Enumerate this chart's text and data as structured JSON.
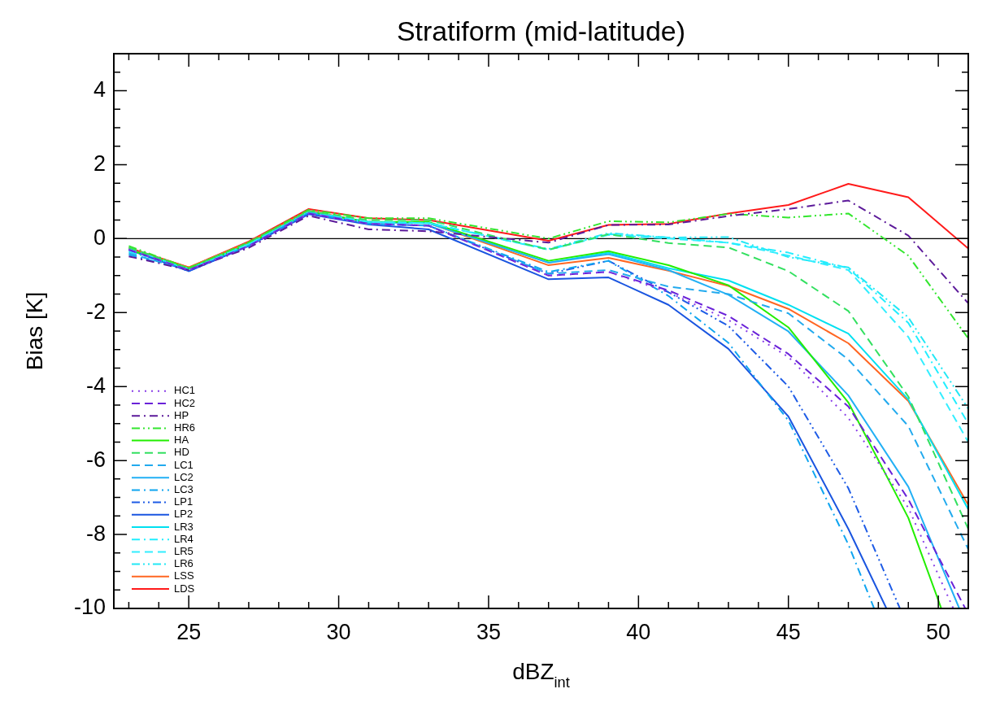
{
  "chart_data": {
    "type": "line",
    "title": "Stratiform (mid-latitude)",
    "xlabel": "dBZ$_{int}$",
    "ylabel": "Bias [K]",
    "x": [
      23,
      25,
      27,
      29,
      31,
      33,
      37,
      39,
      41,
      43,
      45,
      47,
      49,
      51
    ],
    "xlim": [
      22.5,
      51
    ],
    "ylim": [
      -10,
      5
    ],
    "xticks": [
      {
        "value": 23,
        "label": null
      },
      {
        "value": 24,
        "label": null
      },
      25,
      {
        "value": 26,
        "label": null
      },
      {
        "value": 27,
        "label": null
      },
      {
        "value": 28,
        "label": null
      },
      {
        "value": 29,
        "label": null
      },
      30,
      {
        "value": 31,
        "label": null
      },
      {
        "value": 32,
        "label": null
      },
      {
        "value": 33,
        "label": null
      },
      {
        "value": 34,
        "label": null
      },
      35,
      {
        "value": 36,
        "label": null
      },
      {
        "value": 37,
        "label": null
      },
      {
        "value": 38,
        "label": null
      },
      {
        "value": 39,
        "label": null
      },
      40,
      {
        "value": 41,
        "label": null
      },
      {
        "value": 42,
        "label": null
      },
      {
        "value": 43,
        "label": null
      },
      {
        "value": 44,
        "label": null
      },
      45,
      {
        "value": 46,
        "label": null
      },
      {
        "value": 47,
        "label": null
      },
      {
        "value": 48,
        "label": null
      },
      {
        "value": 49,
        "label": null
      },
      50,
      {
        "value": 51,
        "label": null
      }
    ],
    "yticks": [
      -10,
      {
        "value": -9.5,
        "label": null
      },
      {
        "value": -9,
        "label": null
      },
      {
        "value": -8.5,
        "label": null
      },
      -8,
      {
        "value": -7.5,
        "label": null
      },
      {
        "value": -7,
        "label": null
      },
      {
        "value": -6.5,
        "label": null
      },
      -6,
      {
        "value": -5.5,
        "label": null
      },
      {
        "value": -5,
        "label": null
      },
      {
        "value": -4.5,
        "label": null
      },
      -4,
      {
        "value": -3.5,
        "label": null
      },
      {
        "value": -3,
        "label": null
      },
      {
        "value": -2.5,
        "label": null
      },
      -2,
      {
        "value": -1.5,
        "label": null
      },
      {
        "value": -1,
        "label": null
      },
      {
        "value": -0.5,
        "label": null
      },
      0,
      {
        "value": 0.5,
        "label": null
      },
      {
        "value": 1,
        "label": null
      },
      {
        "value": 1.5,
        "label": null
      },
      2,
      {
        "value": 2.5,
        "label": null
      },
      {
        "value": 3,
        "label": null
      },
      {
        "value": 3.5,
        "label": null
      },
      4,
      {
        "value": 4.5,
        "label": null
      },
      {
        "value": 5,
        "label": null
      }
    ],
    "ref_lines": [
      {
        "axis": "y",
        "value": 0,
        "color": "#000000"
      }
    ],
    "legend": "bottom left",
    "marker": "none",
    "series": [
      {
        "name": "HC1",
        "color": "#8a3ee8",
        "line_style": "dotted",
        "x": [
          23,
          25,
          27,
          29,
          31,
          33,
          37,
          39,
          41,
          43,
          45,
          47,
          49,
          50.5
        ],
        "values": [
          -0.3,
          -0.85,
          -0.2,
          0.68,
          0.4,
          0.35,
          -1.0,
          -0.9,
          -1.45,
          -2.2,
          -3.2,
          -4.85,
          -7.28,
          -10
        ]
      },
      {
        "name": "HC2",
        "color": "#6a22d8",
        "line_style": "dashed",
        "x": [
          23,
          25,
          27,
          29,
          31,
          33,
          37,
          39,
          41,
          43,
          45,
          47,
          49,
          50.9
        ],
        "values": [
          -0.3,
          -0.85,
          -0.2,
          0.68,
          0.4,
          0.35,
          -1.0,
          -0.9,
          -1.4,
          -2.09,
          -3.12,
          -4.54,
          -7.05,
          -10
        ]
      },
      {
        "name": "HP",
        "color": "#5c1a9a",
        "line_style": "dashdot",
        "values": [
          -0.48,
          -0.85,
          -0.25,
          0.62,
          0.25,
          0.2,
          -0.11,
          0.37,
          0.38,
          0.61,
          0.8,
          1.03,
          0.08,
          -1.75
        ]
      },
      {
        "name": "HR6",
        "color": "#33e62e",
        "line_style": "dashdotdot",
        "values": [
          -0.2,
          -0.8,
          -0.1,
          0.78,
          0.55,
          0.55,
          0.0,
          0.47,
          0.44,
          0.67,
          0.57,
          0.68,
          -0.46,
          -2.7
        ]
      },
      {
        "name": "HA",
        "color": "#22ee00",
        "line_style": "solid",
        "x": [
          23,
          25,
          27,
          29,
          31,
          33,
          37,
          39,
          41,
          43,
          45,
          47,
          49,
          50.1
        ],
        "values": [
          -0.3,
          -0.8,
          -0.15,
          0.72,
          0.45,
          0.45,
          -0.6,
          -0.34,
          -0.72,
          -1.26,
          -2.4,
          -4.43,
          -7.55,
          -10
        ]
      },
      {
        "name": "HD",
        "color": "#33e060",
        "line_style": "dashed",
        "values": [
          -0.24,
          -0.8,
          -0.1,
          0.75,
          0.5,
          0.5,
          -0.3,
          0.12,
          -0.12,
          -0.24,
          -0.88,
          -1.96,
          -4.27,
          -7.85
        ]
      },
      {
        "name": "LC1",
        "color": "#22aaee",
        "line_style": "dashed",
        "values": [
          -0.4,
          -0.85,
          -0.2,
          0.7,
          0.4,
          0.35,
          -0.95,
          -0.85,
          -1.3,
          -1.5,
          -2.02,
          -3.27,
          -5.07,
          -8.4
        ]
      },
      {
        "name": "LC2",
        "color": "#22b0f5",
        "line_style": "solid",
        "x": [
          23,
          25,
          27,
          29,
          31,
          33,
          37,
          39,
          41,
          43,
          45,
          47,
          49,
          50.7
        ],
        "values": [
          -0.3,
          -0.82,
          -0.15,
          0.72,
          0.45,
          0.42,
          -0.65,
          -0.42,
          -0.85,
          -1.52,
          -2.51,
          -4.24,
          -6.71,
          -10
        ]
      },
      {
        "name": "LC3",
        "color": "#0fa5f0",
        "line_style": "dashdot",
        "x": [
          23,
          25,
          27,
          29,
          31,
          33,
          37,
          39,
          41,
          43,
          45,
          47,
          47.86
        ],
        "values": [
          -0.44,
          -0.85,
          -0.2,
          0.7,
          0.4,
          0.35,
          -0.9,
          -0.6,
          -1.55,
          -2.82,
          -4.92,
          -8.27,
          -10
        ]
      },
      {
        "name": "LP1",
        "color": "#1e5ce6",
        "line_style": "dashdotdot",
        "x": [
          23,
          25,
          27,
          29,
          31,
          33,
          37,
          39,
          41,
          43,
          45,
          47,
          48.72
        ],
        "values": [
          -0.3,
          -0.88,
          -0.2,
          0.68,
          0.4,
          0.35,
          -0.95,
          -0.6,
          -1.45,
          -2.36,
          -4.0,
          -6.75,
          -10
        ]
      },
      {
        "name": "LP2",
        "color": "#1a55e0",
        "line_style": "solid",
        "x": [
          23,
          25,
          27,
          29,
          31,
          33,
          37,
          39,
          41,
          43,
          45,
          47,
          48.27
        ],
        "values": [
          -0.3,
          -0.88,
          -0.2,
          0.66,
          0.38,
          0.25,
          -1.1,
          -1.05,
          -1.79,
          -2.98,
          -4.81,
          -7.85,
          -10
        ]
      },
      {
        "name": "LR3",
        "color": "#00e0f0",
        "line_style": "solid",
        "values": [
          -0.3,
          -0.82,
          -0.15,
          0.72,
          0.45,
          0.42,
          -0.65,
          -0.38,
          -0.8,
          -1.13,
          -1.79,
          -2.57,
          -4.35,
          -7.32
        ]
      },
      {
        "name": "LR4",
        "color": "#22eeff",
        "line_style": "dashdot",
        "values": [
          -0.28,
          -0.82,
          -0.15,
          0.72,
          0.45,
          0.42,
          -0.3,
          0.12,
          0.03,
          -0.11,
          -0.38,
          -0.8,
          -2.28,
          -5.0
        ]
      },
      {
        "name": "LR5",
        "color": "#33eeff",
        "line_style": "dashed",
        "values": [
          -0.32,
          -0.82,
          -0.15,
          0.72,
          0.45,
          0.42,
          -0.3,
          0.1,
          0.0,
          -0.11,
          -0.46,
          -0.85,
          -2.66,
          -5.5
        ]
      },
      {
        "name": "LR6",
        "color": "#22e8f5",
        "line_style": "dashdotdot",
        "values": [
          -0.36,
          -0.82,
          -0.15,
          0.72,
          0.45,
          0.42,
          -0.28,
          0.15,
          0.03,
          0.04,
          -0.5,
          -0.78,
          -2.13,
          -4.6
        ]
      },
      {
        "name": "LSS",
        "color": "#ff6622",
        "line_style": "solid",
        "values": [
          -0.28,
          -0.78,
          -0.1,
          0.75,
          0.45,
          0.42,
          -0.72,
          -0.52,
          -0.87,
          -1.28,
          -1.9,
          -2.83,
          -4.39,
          -7.2
        ]
      },
      {
        "name": "LDS",
        "color": "#ff1a1a",
        "line_style": "solid",
        "values": [
          -0.25,
          -0.78,
          -0.08,
          0.8,
          0.55,
          0.5,
          -0.06,
          0.37,
          0.4,
          0.68,
          0.91,
          1.48,
          1.12,
          -0.27
        ]
      }
    ]
  }
}
